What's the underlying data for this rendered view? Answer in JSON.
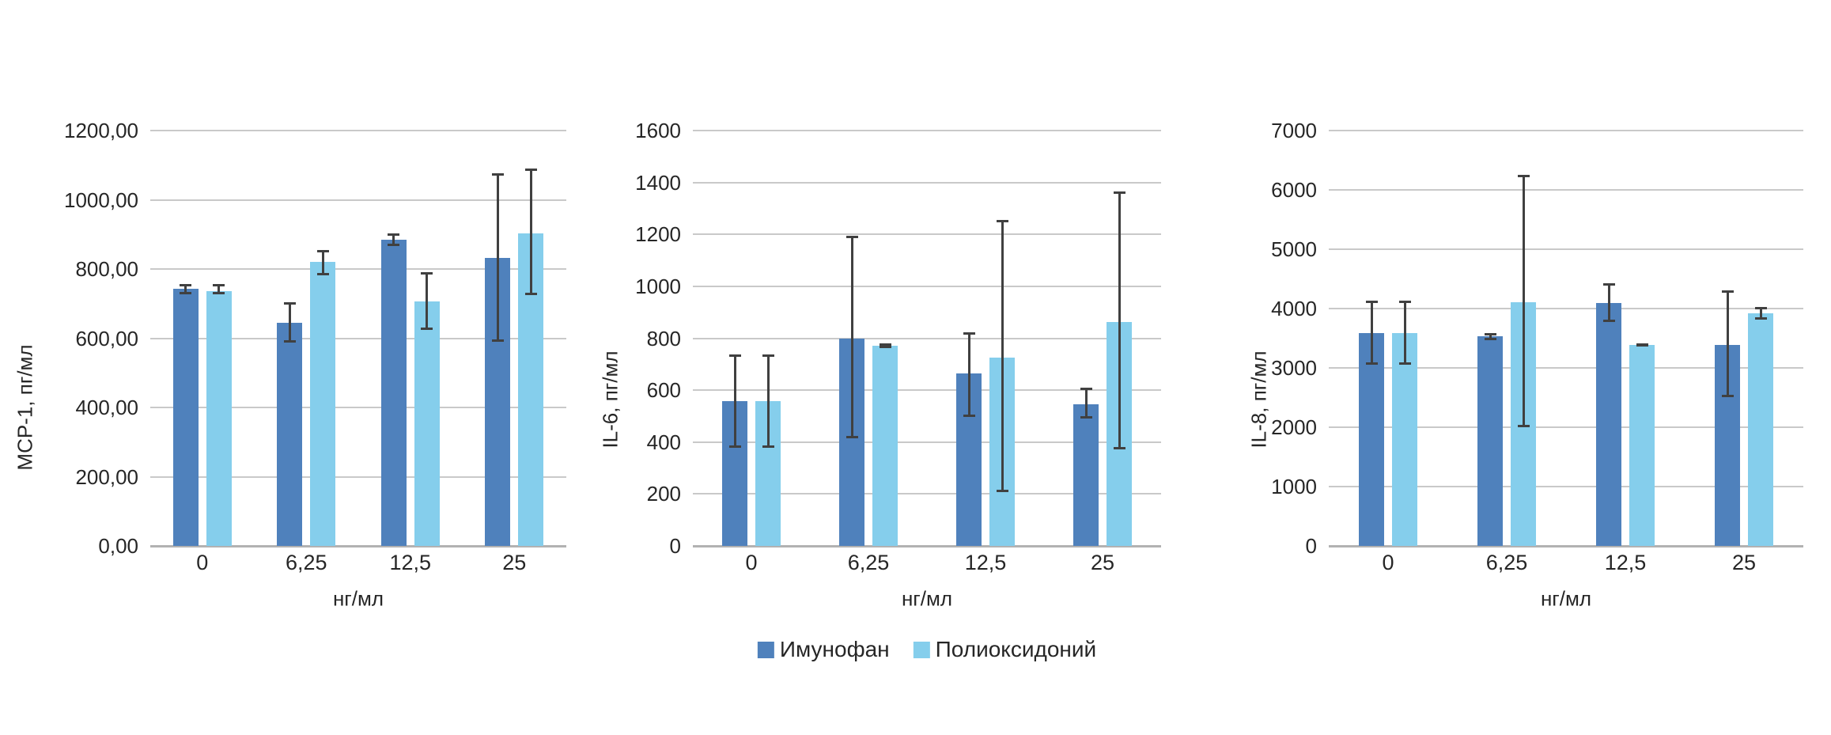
{
  "legend": {
    "items": [
      {
        "label": "Имунофан",
        "color": "#4f81bc"
      },
      {
        "label": "Полиоксидоний",
        "color": "#85ceec"
      }
    ]
  },
  "colors": {
    "series_dark": "#4f81bc",
    "series_light": "#85ceec",
    "gridline": "#c9c9c9",
    "axis_line": "#b2b2b2",
    "error_bar": "#404040",
    "text": "#262626"
  },
  "chart_data": [
    {
      "type": "bar",
      "title": "",
      "ylabel": "MCP-1, пг/мл",
      "xlabel": "нг/мл",
      "categories": [
        "0",
        "6,25",
        "12,5",
        "25"
      ],
      "ylim": [
        0,
        1200
      ],
      "ytick_step": 200,
      "ytick_format": "comma2",
      "grid": true,
      "legend_position": "none",
      "series": [
        {
          "name": "Имунофан",
          "values": [
            743,
            645,
            885,
            833
          ],
          "err_low": [
            726,
            587,
            867,
            590
          ],
          "err_high": [
            757,
            705,
            903,
            1077
          ]
        },
        {
          "name": "Полиоксидоний",
          "values": [
            736,
            820,
            706,
            904
          ],
          "err_low": [
            728,
            782,
            623,
            724
          ],
          "err_high": [
            757,
            856,
            792,
            1091
          ]
        }
      ]
    },
    {
      "type": "bar",
      "title": "",
      "ylabel": "IL-6, пг/мл",
      "xlabel": "нг/мл",
      "categories": [
        "0",
        "6,25",
        "12,5",
        "25"
      ],
      "ylim": [
        0,
        1600
      ],
      "ytick_step": 200,
      "ytick_format": "int",
      "grid": true,
      "legend_position": "bottom",
      "series": [
        {
          "name": "Имунофан",
          "values": [
            558,
            800,
            665,
            546
          ],
          "err_low": [
            379,
            414,
            498,
            490
          ],
          "err_high": [
            738,
            1196,
            824,
            609
          ]
        },
        {
          "name": "Полиоксидоний",
          "values": [
            558,
            770,
            725,
            862
          ],
          "err_low": [
            379,
            761,
            207,
            371
          ],
          "err_high": [
            738,
            779,
            1256,
            1366
          ]
        }
      ]
    },
    {
      "type": "bar",
      "title": "",
      "ylabel": "IL-8, пг/мл",
      "xlabel": "нг/мл",
      "categories": [
        "0",
        "6,25",
        "12,5",
        "25"
      ],
      "ylim": [
        0,
        7000
      ],
      "ytick_step": 1000,
      "ytick_format": "int",
      "grid": true,
      "legend_position": "none",
      "series": [
        {
          "name": "Имунофан",
          "values": [
            3585,
            3530,
            4090,
            3383
          ],
          "err_low": [
            3060,
            3464,
            3776,
            2513
          ],
          "err_high": [
            4135,
            3592,
            4425,
            4305
          ]
        },
        {
          "name": "Полиоксидоний",
          "values": [
            3585,
            4113,
            3383,
            3920
          ],
          "err_low": [
            3060,
            1998,
            3357,
            3808
          ],
          "err_high": [
            4135,
            6254,
            3409,
            4032
          ]
        }
      ]
    }
  ]
}
